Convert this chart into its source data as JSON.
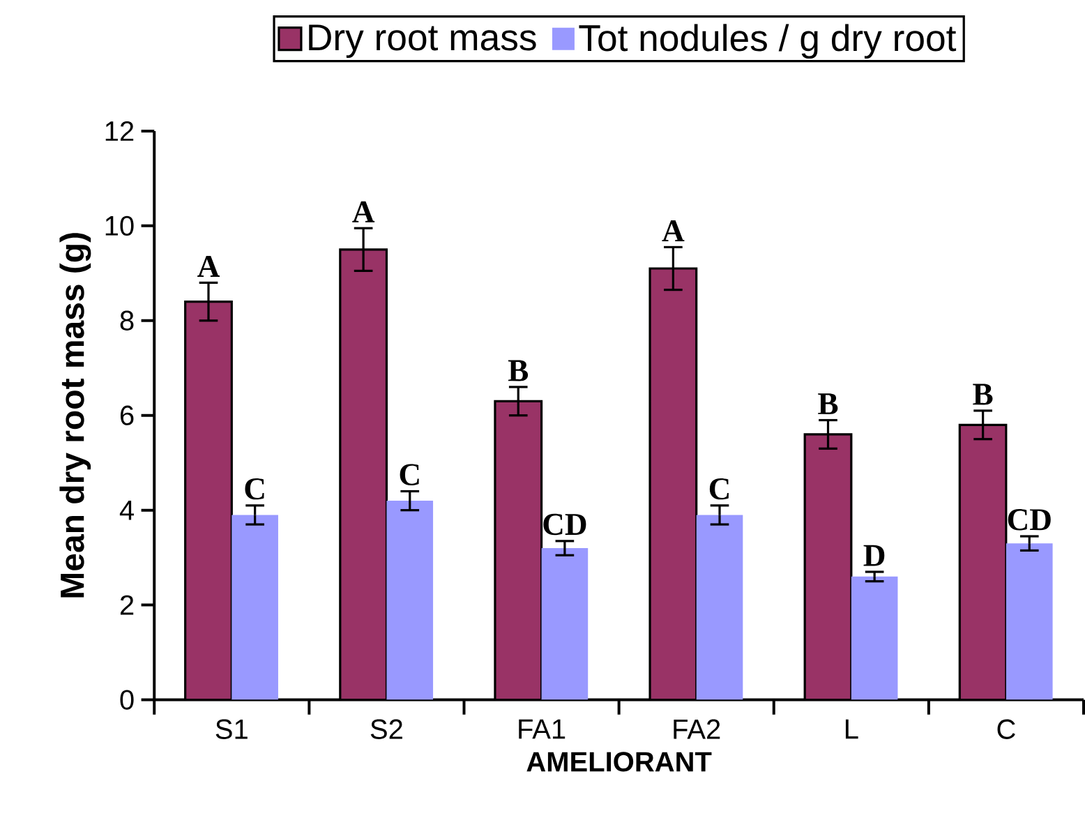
{
  "chart_data": {
    "type": "bar",
    "xlabel": "AMELIORANT",
    "ylabel": "Mean dry root mass (g)",
    "categories": [
      "S1",
      "S2",
      "FA1",
      "FA2",
      "L",
      "C"
    ],
    "series": [
      {
        "name": "Dry root mass",
        "color": "#993366",
        "values": [
          8.4,
          9.5,
          6.3,
          9.1,
          5.6,
          5.8
        ],
        "errors": [
          0.4,
          0.45,
          0.3,
          0.45,
          0.3,
          0.3
        ],
        "value_labels": [
          "A",
          "A",
          "B",
          "A",
          "B",
          "B"
        ]
      },
      {
        "name": "Tot nodules / g dry root",
        "color": "#9999ff",
        "values": [
          3.9,
          4.2,
          3.2,
          3.9,
          2.6,
          3.3
        ],
        "errors": [
          0.2,
          0.2,
          0.15,
          0.2,
          0.1,
          0.15
        ],
        "value_labels": [
          "C",
          "C",
          "CD",
          "C",
          "D",
          "CD"
        ]
      }
    ],
    "ylim": [
      0,
      12
    ],
    "yticks": [
      0,
      2,
      4,
      6,
      8,
      10,
      12
    ],
    "grid": false,
    "legend": "top"
  }
}
